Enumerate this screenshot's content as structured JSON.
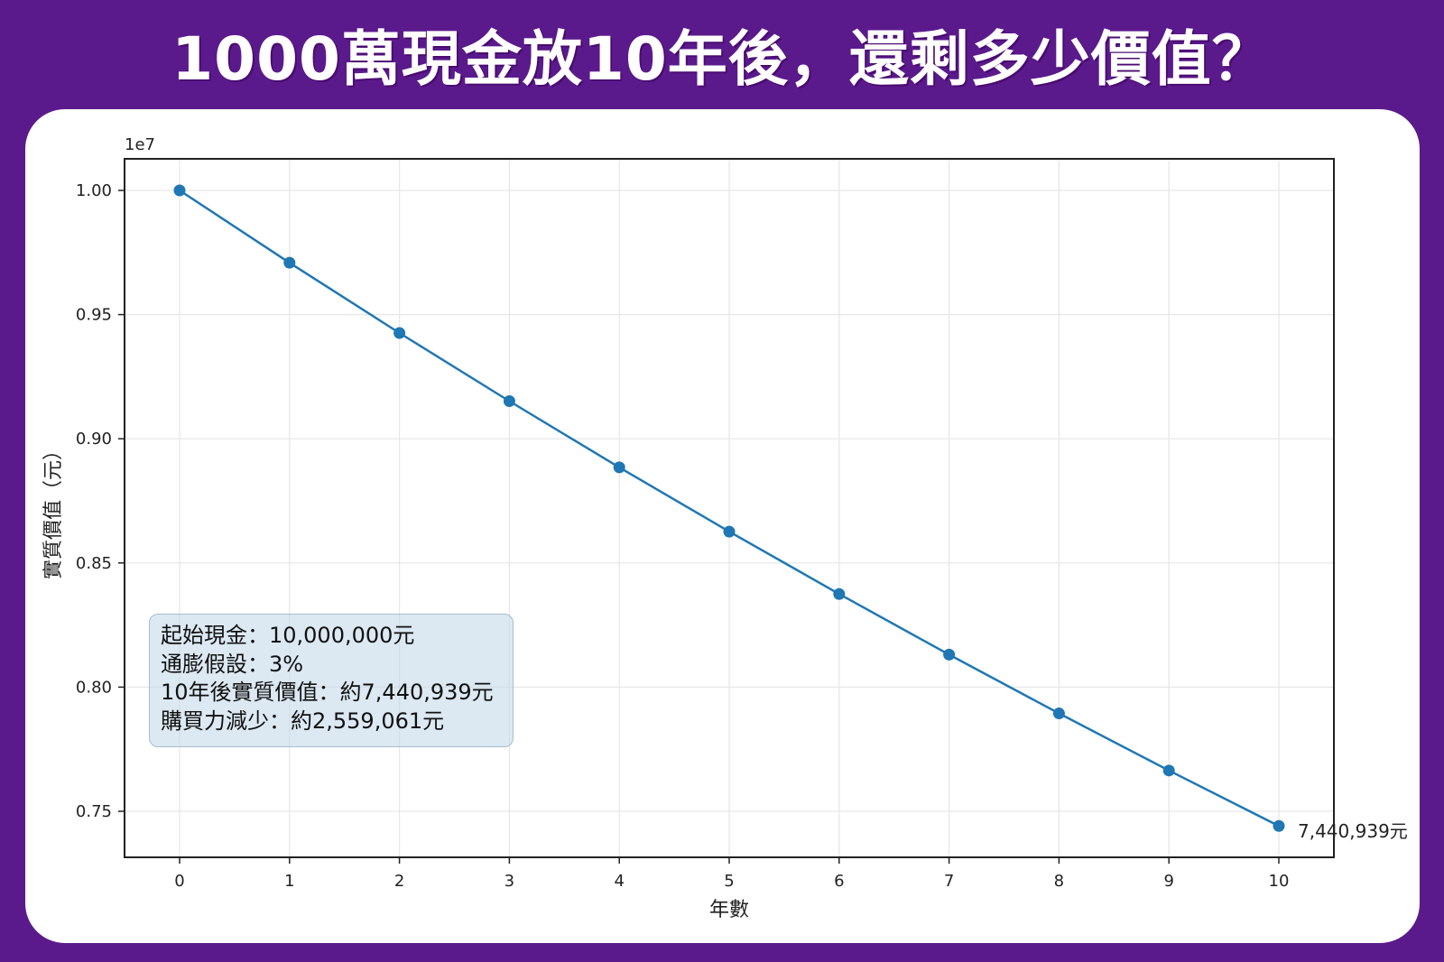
{
  "header": {
    "title": "1000萬現金放10年後，還剩多少價值？"
  },
  "colors": {
    "background": "#5b1a8c",
    "card": "#ffffff",
    "line": "#1f77b4",
    "grid": "#e6e6e6",
    "info_box_fill": "#dbe7f1",
    "info_box_border": "#a9bccb"
  },
  "chart": {
    "offset_text": "1e7",
    "xlabel": "年數",
    "ylabel": "實質價值（元）",
    "x_ticks": [
      "0",
      "1",
      "2",
      "3",
      "4",
      "5",
      "6",
      "7",
      "8",
      "9",
      "10"
    ],
    "y_ticks": [
      "1.00",
      "0.95",
      "0.90",
      "0.85",
      "0.80",
      "0.75"
    ],
    "end_annotation": "7,440,939元",
    "info_box": {
      "line1": "起始現金：10,000,000元",
      "line2": "通膨假設：3%",
      "line3": "10年後實質價值：約7,440,939元",
      "line4": "購買力減少：約2,559,061元"
    }
  },
  "chart_data": {
    "type": "line",
    "title": "1000萬現金放10年後，還剩多少價值？",
    "xlabel": "年數",
    "ylabel": "實質價值（元）",
    "y_scale_note": "1e7",
    "x": [
      0,
      1,
      2,
      3,
      4,
      5,
      6,
      7,
      8,
      9,
      10
    ],
    "series": [
      {
        "name": "實質價值",
        "values": [
          10000000,
          9708738,
          9425959,
          9151417,
          8884870,
          8626088,
          8374843,
          8130915,
          7894092,
          7664167,
          7440939
        ],
        "marker": "circle",
        "color": "#1f77b4"
      }
    ],
    "ylim": [
      7300000,
      10130000
    ],
    "xlim": [
      -0.5,
      10.5
    ],
    "y_ticks": [
      1.0,
      0.95,
      0.9,
      0.85,
      0.8,
      0.75
    ],
    "grid": true,
    "annotations": [
      {
        "x": 10,
        "y": 7440939,
        "text": "7,440,939元"
      },
      {
        "type": "textbox",
        "text": [
          "起始現金：10,000,000元",
          "通膨假設：3%",
          "10年後實質價值：約7,440,939元",
          "購買力減少：約2,559,061元"
        ]
      }
    ]
  }
}
